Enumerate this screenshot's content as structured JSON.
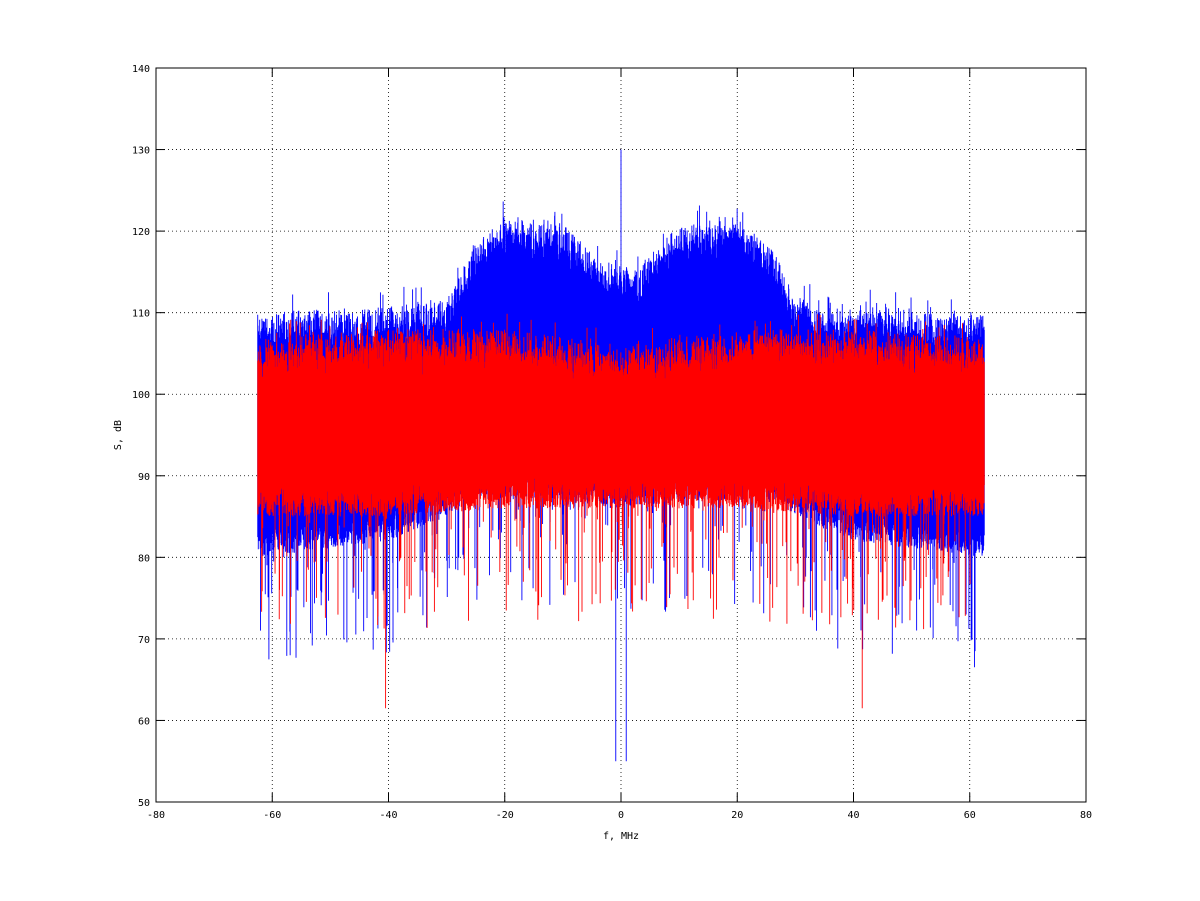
{
  "chart_data": {
    "type": "line",
    "title": "",
    "xlabel": "f, MHz",
    "ylabel": "S, dB",
    "xlim": [
      -80,
      80
    ],
    "ylim": [
      50,
      140
    ],
    "xticks": [
      -80,
      -60,
      -40,
      -20,
      0,
      20,
      40,
      60,
      80
    ],
    "yticks": [
      50,
      60,
      70,
      80,
      90,
      100,
      110,
      120,
      130,
      140
    ],
    "grid": true,
    "legend": "none",
    "series": [
      {
        "color": "#0000ff",
        "x_range": [
          -62.5,
          62.5
        ],
        "shape_summary": [
          {
            "x": -62,
            "upper": 110,
            "lower": 80
          },
          {
            "x": -40,
            "upper": 111,
            "lower": 82
          },
          {
            "x": -30,
            "upper": 112,
            "lower": 85
          },
          {
            "x": -26,
            "upper": 118,
            "lower": 87
          },
          {
            "x": -20,
            "upper": 122,
            "lower": 87
          },
          {
            "x": -10,
            "upper": 121,
            "lower": 87
          },
          {
            "x": -3,
            "upper": 116,
            "lower": 86
          },
          {
            "x": 0,
            "upper": 130,
            "lower": 55
          },
          {
            "x": 3,
            "upper": 116,
            "lower": 86
          },
          {
            "x": 10,
            "upper": 121,
            "lower": 87
          },
          {
            "x": 20,
            "upper": 122,
            "lower": 87
          },
          {
            "x": 26,
            "upper": 118,
            "lower": 87
          },
          {
            "x": 30,
            "upper": 112,
            "lower": 85
          },
          {
            "x": 40,
            "upper": 111,
            "lower": 82
          },
          {
            "x": 62,
            "upper": 110,
            "lower": 80
          }
        ]
      },
      {
        "color": "#ff0000",
        "x_range": [
          -62.5,
          62.5
        ],
        "shape_summary": [
          {
            "x": -62,
            "upper": 107,
            "lower": 85
          },
          {
            "x": -40,
            "upper": 108,
            "lower": 85
          },
          {
            "x": -20,
            "upper": 108,
            "lower": 86
          },
          {
            "x": 0,
            "upper": 106,
            "lower": 86
          },
          {
            "x": 20,
            "upper": 108,
            "lower": 86
          },
          {
            "x": 40,
            "upper": 108,
            "lower": 85
          },
          {
            "x": 62,
            "upper": 107,
            "lower": 85
          }
        ],
        "min_spikes": [
          {
            "x": -40.5,
            "y": 61.5
          },
          {
            "x": 41.5,
            "y": 61.5
          }
        ]
      }
    ]
  }
}
